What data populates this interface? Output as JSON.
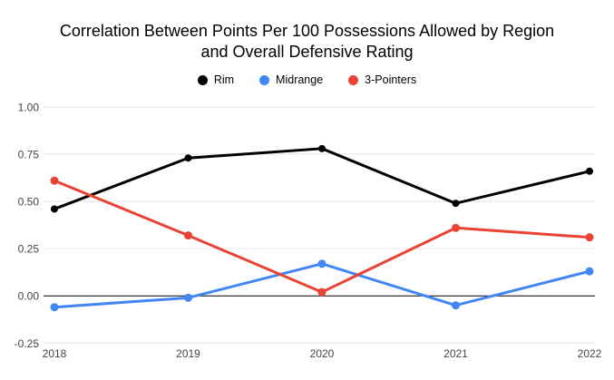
{
  "chart_data": {
    "type": "line",
    "title": "Correlation Between Points Per 100 Possessions Allowed by Region and Overall Defensive Rating",
    "title_lines": [
      "Correlation Between Points Per 100 Possessions Allowed by Region",
      "and Overall Defensive Rating"
    ],
    "categories": [
      "2018",
      "2019",
      "2020",
      "2021",
      "2022"
    ],
    "series": [
      {
        "name": "Rim",
        "color": "#000000",
        "values": [
          0.46,
          0.73,
          0.78,
          0.49,
          0.66
        ]
      },
      {
        "name": "Midrange",
        "color": "#4285f4",
        "values": [
          -0.06,
          -0.01,
          0.17,
          -0.05,
          0.13
        ]
      },
      {
        "name": "3-Pointers",
        "color": "#ea4335",
        "values": [
          0.61,
          0.32,
          0.02,
          0.36,
          0.31
        ]
      }
    ],
    "xlabel": "",
    "ylabel": "",
    "ylim": [
      -0.25,
      1.0
    ],
    "y_ticks": [
      1.0,
      0.75,
      0.5,
      0.25,
      0.0,
      -0.25
    ],
    "y_tick_labels": [
      "1.00",
      "0.75",
      "0.50",
      "0.25",
      "0.00",
      "-0.25"
    ],
    "grid": true,
    "legend_position": "top",
    "colors": {
      "gridline": "#e6e6e6",
      "zero_line": "#000000",
      "axis_label": "#444444",
      "title": "#000000",
      "legend_label": "#000000"
    }
  }
}
